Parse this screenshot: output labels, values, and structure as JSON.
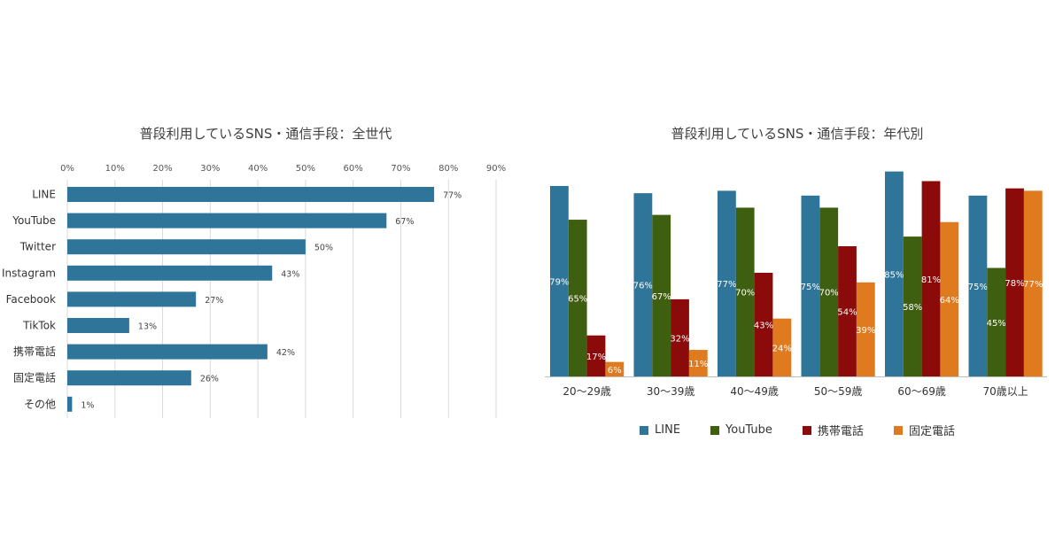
{
  "chart_data": [
    {
      "type": "bar",
      "orientation": "horizontal",
      "title": "普段利用しているSNS・通信手段：全世代",
      "categories": [
        "LINE",
        "YouTube",
        "Twitter",
        "Instagram",
        "Facebook",
        "TikTok",
        "携帯電話",
        "固定電話",
        "その他"
      ],
      "values": [
        77,
        67,
        50,
        43,
        27,
        13,
        42,
        26,
        1
      ],
      "value_labels": [
        "77%",
        "67%",
        "50%",
        "43%",
        "27%",
        "13%",
        "42%",
        "26%",
        "1%"
      ],
      "xlim": [
        0,
        90
      ],
      "ticks": [
        "0%",
        "10%",
        "20%",
        "30%",
        "40%",
        "50%",
        "60%",
        "70%",
        "80%",
        "90%"
      ],
      "tick_values": [
        0,
        10,
        20,
        30,
        40,
        50,
        60,
        70,
        80,
        90
      ],
      "axis_position": "top",
      "grid": true,
      "color": "#2e7599"
    },
    {
      "type": "bar",
      "orientation": "vertical",
      "title": "普段利用しているSNS・通信手段：年代別",
      "categories": [
        "20～29歳",
        "30～39歳",
        "40～49歳",
        "50～59歳",
        "60～69歳",
        "70歳以上"
      ],
      "series": [
        {
          "name": "LINE",
          "color": "#2e7599",
          "values": [
            79,
            76,
            77,
            75,
            85,
            75
          ],
          "labels": [
            "79%",
            "76%",
            "77%",
            "75%",
            "85%",
            "75%"
          ]
        },
        {
          "name": "YouTube",
          "color": "#3f5f10",
          "values": [
            65,
            67,
            70,
            70,
            58,
            45
          ],
          "labels": [
            "65%",
            "67%",
            "70%",
            "70%",
            "58%",
            "45%"
          ]
        },
        {
          "name": "携帯電話",
          "color": "#8b0a0a",
          "values": [
            17,
            32,
            43,
            54,
            81,
            78
          ],
          "labels": [
            "17%",
            "32%",
            "43%",
            "54%",
            "81%",
            "78%"
          ]
        },
        {
          "name": "固定電話",
          "color": "#e07a1f",
          "values": [
            6,
            11,
            24,
            39,
            64,
            77
          ],
          "labels": [
            "6%",
            "11%",
            "24%",
            "39%",
            "64%",
            "77%"
          ]
        }
      ],
      "ylim": [
        0,
        90
      ],
      "legend": "bottom",
      "grid": false
    }
  ]
}
